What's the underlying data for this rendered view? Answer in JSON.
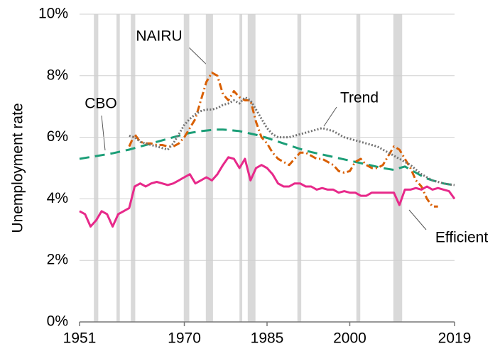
{
  "chart_data": {
    "type": "line",
    "y_label": "Unemployment rate",
    "xlim": [
      1951,
      2019
    ],
    "xticks": [
      1951,
      1970,
      1985,
      2000,
      2019
    ],
    "ylim": [
      0,
      10
    ],
    "yticks": [
      {
        "value": 0,
        "label": "0%"
      },
      {
        "value": 2,
        "label": "2%"
      },
      {
        "value": 4,
        "label": "4%"
      },
      {
        "value": 6,
        "label": "6%"
      },
      {
        "value": 8,
        "label": "8%"
      },
      {
        "value": 10,
        "label": "10%"
      }
    ],
    "grid": true,
    "recessions": [
      [
        1953.6,
        1954.4
      ],
      [
        1957.7,
        1958.3
      ],
      [
        1960.3,
        1961.1
      ],
      [
        1969.9,
        1970.9
      ],
      [
        1973.9,
        1975.2
      ],
      [
        1980.0,
        1980.5
      ],
      [
        1981.5,
        1982.9
      ],
      [
        1990.5,
        1991.2
      ],
      [
        2001.2,
        2001.9
      ],
      [
        2007.9,
        2009.5
      ]
    ],
    "recession_color": "#d9d9d9",
    "x": [
      1951,
      1952,
      1953,
      1954,
      1955,
      1956,
      1957,
      1958,
      1959,
      1960,
      1961,
      1962,
      1963,
      1964,
      1965,
      1966,
      1967,
      1968,
      1969,
      1970,
      1971,
      1972,
      1973,
      1974,
      1975,
      1976,
      1977,
      1978,
      1979,
      1980,
      1981,
      1982,
      1983,
      1984,
      1985,
      1986,
      1987,
      1988,
      1989,
      1990,
      1991,
      1992,
      1993,
      1994,
      1995,
      1996,
      1997,
      1998,
      1999,
      2000,
      2001,
      2002,
      2003,
      2004,
      2005,
      2006,
      2007,
      2008,
      2009,
      2010,
      2011,
      2012,
      2013,
      2014,
      2015,
      2016,
      2017,
      2018,
      2019
    ],
    "series": [
      {
        "name": "CBO",
        "color": "#1b9e77",
        "style": "dashed",
        "values": [
          5.3,
          5.33,
          5.36,
          5.39,
          5.42,
          5.45,
          5.48,
          5.52,
          5.56,
          5.6,
          5.65,
          5.7,
          5.75,
          5.8,
          5.85,
          5.9,
          5.95,
          6.0,
          6.05,
          6.1,
          6.14,
          6.17,
          6.2,
          6.22,
          6.24,
          6.25,
          6.25,
          6.24,
          6.22,
          6.2,
          6.16,
          6.12,
          6.08,
          6.03,
          5.98,
          5.92,
          5.86,
          5.8,
          5.74,
          5.68,
          5.62,
          5.57,
          5.52,
          5.48,
          5.44,
          5.4,
          5.36,
          5.32,
          5.28,
          5.24,
          5.2,
          5.16,
          5.12,
          5.08,
          5.04,
          5.0,
          4.97,
          4.94,
          5.0,
          5.05,
          4.95,
          4.85,
          4.75,
          4.66,
          4.6,
          4.55,
          4.5,
          4.47,
          4.45
        ]
      },
      {
        "name": "NAIRU",
        "color": "#d95f02",
        "style": "dashdot",
        "values": [
          null,
          null,
          null,
          null,
          null,
          null,
          null,
          null,
          null,
          5.7,
          6.1,
          5.85,
          5.8,
          5.8,
          5.75,
          5.75,
          5.7,
          5.7,
          5.8,
          6.0,
          6.3,
          6.6,
          7.2,
          7.8,
          8.1,
          8.0,
          7.4,
          7.2,
          7.5,
          7.3,
          7.2,
          7.2,
          6.5,
          6.0,
          5.8,
          5.5,
          5.3,
          5.2,
          5.1,
          5.3,
          5.5,
          5.5,
          5.4,
          5.3,
          5.3,
          5.2,
          5.1,
          4.9,
          4.85,
          4.9,
          5.2,
          5.3,
          5.1,
          5.0,
          5.0,
          5.1,
          5.4,
          5.7,
          5.6,
          5.3,
          5.0,
          4.6,
          4.4,
          4.0,
          3.75,
          3.75,
          null,
          null,
          null
        ]
      },
      {
        "name": "Trend",
        "color": "#737373",
        "style": "dotted",
        "values": [
          null,
          null,
          null,
          null,
          null,
          null,
          null,
          null,
          null,
          6.05,
          6.0,
          5.85,
          5.8,
          5.75,
          5.7,
          5.65,
          5.6,
          5.8,
          6.1,
          6.4,
          6.6,
          6.75,
          6.85,
          6.9,
          6.9,
          6.95,
          7.05,
          7.1,
          7.2,
          7.1,
          7.3,
          7.2,
          6.9,
          6.6,
          6.3,
          6.1,
          6.0,
          6.0,
          6.0,
          6.05,
          6.1,
          6.15,
          6.2,
          6.25,
          6.3,
          6.25,
          6.2,
          6.1,
          6.0,
          5.95,
          5.9,
          5.85,
          5.8,
          5.75,
          5.7,
          5.6,
          5.5,
          5.4,
          5.3,
          5.2,
          5.1,
          4.95,
          4.8,
          4.7,
          4.6,
          4.55,
          4.5,
          4.47,
          4.45
        ]
      },
      {
        "name": "Efficient",
        "color": "#e7298a",
        "style": "solid",
        "values": [
          3.6,
          3.5,
          3.1,
          3.3,
          3.6,
          3.5,
          3.1,
          3.5,
          3.6,
          3.7,
          4.4,
          4.5,
          4.4,
          4.5,
          4.55,
          4.5,
          4.45,
          4.5,
          4.6,
          4.7,
          4.8,
          4.5,
          4.6,
          4.7,
          4.6,
          4.8,
          5.1,
          5.35,
          5.3,
          5.0,
          5.3,
          4.6,
          5.0,
          5.1,
          5.0,
          4.8,
          4.5,
          4.4,
          4.4,
          4.5,
          4.5,
          4.4,
          4.4,
          4.3,
          4.35,
          4.3,
          4.3,
          4.2,
          4.25,
          4.2,
          4.2,
          4.1,
          4.1,
          4.2,
          4.2,
          4.2,
          4.2,
          4.2,
          3.8,
          4.3,
          4.3,
          4.35,
          4.3,
          4.4,
          4.3,
          4.35,
          4.3,
          4.25,
          4.0
        ]
      }
    ]
  }
}
